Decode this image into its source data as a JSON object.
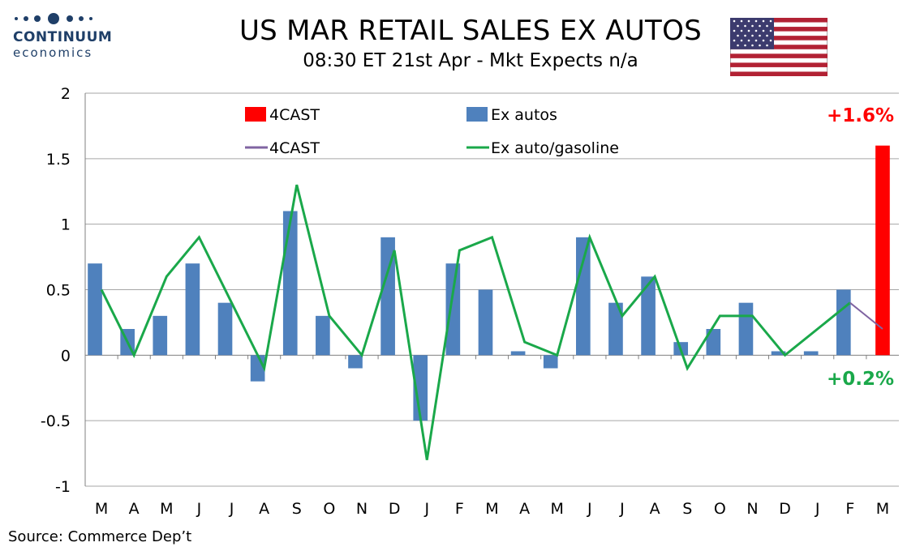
{
  "header": {
    "logo_name": "CONTINUUM",
    "logo_sub": "economics",
    "title": "US MAR RETAIL SALES EX AUTOS",
    "subtitle": "08:30 ET 21st Apr - Mkt Expects n/a"
  },
  "footer": {
    "source": "Source: Commerce Dep’t"
  },
  "colors": {
    "ex_autos_bar": "#4f81bd",
    "forecast_bar": "#ff0000",
    "ex_auto_gasoline_line": "#1aa84a",
    "forecast_line": "#8064a2",
    "grid": "#a6a6a6",
    "positive_label": "#ff0000",
    "green_label": "#1aa84a",
    "logo": "#1f3f68"
  },
  "chart_data": {
    "type": "bar",
    "categories": [
      "M",
      "A",
      "M",
      "J",
      "J",
      "A",
      "S",
      "O",
      "N",
      "D",
      "J",
      "F",
      "M",
      "A",
      "M",
      "J",
      "J",
      "A",
      "S",
      "O",
      "N",
      "D",
      "J",
      "F",
      "M"
    ],
    "ylim": [
      -1,
      2
    ],
    "yticks": [
      "-1",
      "-0.5",
      "0",
      "0.5",
      "1",
      "1.5",
      "2"
    ],
    "grid": true,
    "legend_position": "top",
    "series": [
      {
        "name": "4CAST",
        "kind": "bar",
        "values": [
          null,
          null,
          null,
          null,
          null,
          null,
          null,
          null,
          null,
          null,
          null,
          null,
          null,
          null,
          null,
          null,
          null,
          null,
          null,
          null,
          null,
          null,
          null,
          null,
          1.6
        ]
      },
      {
        "name": "Ex autos",
        "kind": "bar",
        "values": [
          0.7,
          0.2,
          0.3,
          0.7,
          0.4,
          -0.2,
          1.1,
          0.3,
          -0.1,
          0.9,
          -0.5,
          0.7,
          0.5,
          0.03,
          -0.1,
          0.9,
          0.4,
          0.6,
          0.1,
          0.2,
          0.4,
          0.03,
          0.03,
          0.5,
          null
        ]
      },
      {
        "name": "4CAST",
        "kind": "line",
        "values": [
          null,
          null,
          null,
          null,
          null,
          null,
          null,
          null,
          null,
          null,
          null,
          null,
          null,
          null,
          null,
          null,
          null,
          null,
          null,
          null,
          null,
          null,
          null,
          0.4,
          0.2
        ]
      },
      {
        "name": "Ex auto/gasoline",
        "kind": "line",
        "values": [
          0.5,
          0.0,
          0.6,
          0.9,
          0.4,
          -0.1,
          1.3,
          0.3,
          0.0,
          0.8,
          -0.8,
          0.8,
          0.9,
          0.1,
          0.0,
          0.9,
          0.3,
          0.6,
          -0.1,
          0.3,
          0.3,
          0.0,
          0.2,
          0.4,
          null
        ]
      }
    ],
    "annotations": [
      {
        "text": "+1.6%",
        "color": "#ff0000"
      },
      {
        "text": "+0.2%",
        "color": "#1aa84a"
      }
    ]
  }
}
